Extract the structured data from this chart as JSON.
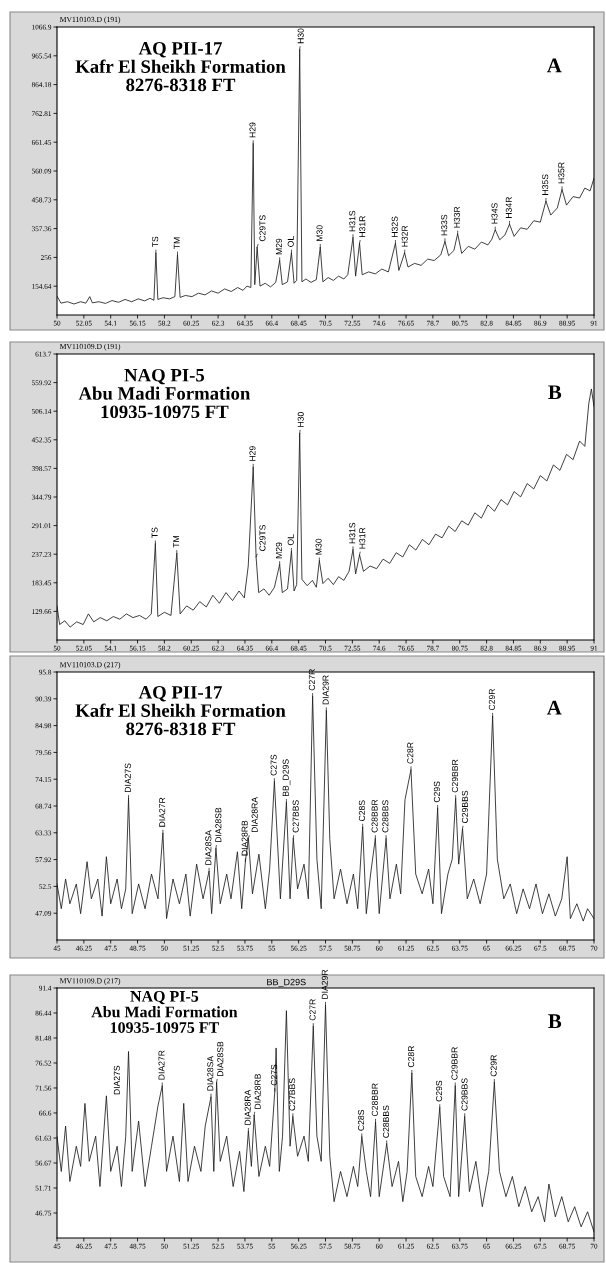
{
  "chart_data": [
    {
      "type": "line",
      "title": "AQ PII-17\nKafr El Sheikh Formation\n8276-8318 FT",
      "subtitle": "MV110103.D (191)",
      "annotations": [
        "A",
        {
          "text": "TS",
          "x": 57.55,
          "y": 272
        },
        {
          "text": "TM",
          "x": 59.2,
          "y": 265
        },
        {
          "text": "H29",
          "x": 64.98,
          "y": 657
        },
        {
          "text": "C29TS",
          "x": 65.28,
          "y": 292
        },
        {
          "text": "M29",
          "x": 67.0,
          "y": 245
        },
        {
          "text": "OL",
          "x": 67.9,
          "y": 272
        },
        {
          "text": "H30",
          "x": 68.53,
          "y": 988
        },
        {
          "text": "M30",
          "x": 70.1,
          "y": 292
        },
        {
          "text": "H31S",
          "x": 72.6,
          "y": 326
        },
        {
          "text": "H31R",
          "x": 73.1,
          "y": 306
        },
        {
          "text": "H32S",
          "x": 75.84,
          "y": 306
        },
        {
          "text": "H32R",
          "x": 76.54,
          "y": 272
        },
        {
          "text": "H33S",
          "x": 79.62,
          "y": 312
        },
        {
          "text": "H33R",
          "x": 80.59,
          "y": 339
        },
        {
          "text": "H34S",
          "x": 83.46,
          "y": 353
        },
        {
          "text": "H34R",
          "x": 84.55,
          "y": 373
        },
        {
          "text": "H35S",
          "x": 87.33,
          "y": 454
        },
        {
          "text": "H35R",
          "x": 88.56,
          "y": 495
        }
      ],
      "x": [
        50,
        50.3,
        50.8,
        51.3,
        51.8,
        52.2,
        52.5,
        52.7,
        53.2,
        53.7,
        54.2,
        54.7,
        55.2,
        55.7,
        56.2,
        56.7,
        57.1,
        57.4,
        57.55,
        57.7,
        58.1,
        58.6,
        59.0,
        59.2,
        59.4,
        59.8,
        60.3,
        60.8,
        61.3,
        61.8,
        62.3,
        62.8,
        63.3,
        63.8,
        64.2,
        64.5,
        64.8,
        64.98,
        65.1,
        65.28,
        65.5,
        65.9,
        66.3,
        66.7,
        67.0,
        67.2,
        67.6,
        67.9,
        68.1,
        68.3,
        68.53,
        68.7,
        69.0,
        69.4,
        69.8,
        70.1,
        70.3,
        70.7,
        71.1,
        71.5,
        71.9,
        72.2,
        72.6,
        72.8,
        73.1,
        73.3,
        73.8,
        74.3,
        74.8,
        75.3,
        75.84,
        76.1,
        76.54,
        76.8,
        77.3,
        77.8,
        78.3,
        78.8,
        79.3,
        79.62,
        79.9,
        80.3,
        80.59,
        80.9,
        81.4,
        81.9,
        82.4,
        82.9,
        83.2,
        83.46,
        83.8,
        84.2,
        84.55,
        84.9,
        85.4,
        85.9,
        86.4,
        86.9,
        87.33,
        87.7,
        88.2,
        88.56,
        88.9,
        89.4,
        89.9,
        90.3,
        90.7,
        91.0
      ],
      "series": [
        {
          "color": "#1a1a1a",
          "values": [
            120,
            95,
            100,
            92,
            100,
            95,
            118,
            96,
            100,
            94,
            104,
            98,
            108,
            100,
            110,
            103,
            112,
            105,
            272,
            108,
            114,
            110,
            118,
            265,
            115,
            122,
            118,
            130,
            124,
            138,
            130,
            145,
            136,
            150,
            140,
            155,
            150,
            657,
            160,
            292,
            155,
            165,
            152,
            168,
            245,
            160,
            170,
            272,
            165,
            175,
            988,
            170,
            180,
            168,
            178,
            292,
            170,
            185,
            175,
            190,
            180,
            195,
            326,
            190,
            306,
            195,
            205,
            198,
            215,
            205,
            306,
            210,
            272,
            222,
            235,
            228,
            250,
            245,
            265,
            312,
            262,
            280,
            339,
            270,
            295,
            285,
            310,
            300,
            320,
            353,
            318,
            335,
            373,
            330,
            360,
            355,
            385,
            380,
            454,
            405,
            430,
            495,
            440,
            470,
            465,
            500,
            490,
            535
          ]
        }
      ],
      "xlim": [
        50,
        91
      ],
      "ylim": [
        53.28,
        1066.9
      ],
      "xticks": [
        50,
        52.05,
        54.1,
        56.15,
        58.2,
        60.25,
        62.3,
        64.35,
        66.4,
        68.45,
        70.5,
        72.55,
        74.6,
        76.65,
        78.7,
        80.75,
        82.8,
        84.85,
        86.9,
        88.95,
        91
      ],
      "yticks": [
        154.64,
        256,
        357.36,
        458.73,
        560.09,
        661.45,
        762.81,
        864.18,
        965.54,
        1066.9
      ]
    },
    {
      "type": "line",
      "title": "NAQ PI-5\nAbu Madi Formation\n10935-10975 FT",
      "subtitle": "MV110109.D (191)",
      "annotations": [
        "B",
        {
          "text": "TS",
          "x": 57.51,
          "y": 257
        },
        {
          "text": "TM",
          "x": 59.15,
          "y": 239
        },
        {
          "text": "H29",
          "x": 64.98,
          "y": 401
        },
        {
          "text": "C29TS",
          "x": 65.2,
          "y": 232
        },
        {
          "text": "M29",
          "x": 67.0,
          "y": 218
        },
        {
          "text": "OL",
          "x": 67.9,
          "y": 243
        },
        {
          "text": "H30",
          "x": 68.53,
          "y": 465
        },
        {
          "text": "M30",
          "x": 70.03,
          "y": 225
        },
        {
          "text": "H31S",
          "x": 72.6,
          "y": 246
        },
        {
          "text": "H31R",
          "x": 73.1,
          "y": 236
        }
      ],
      "x": [
        50,
        50.2,
        50.6,
        51.0,
        51.5,
        52.0,
        52.4,
        52.8,
        53.3,
        53.8,
        54.3,
        54.8,
        55.3,
        55.8,
        56.3,
        56.8,
        57.2,
        57.51,
        57.7,
        58.2,
        58.7,
        59.15,
        59.4,
        59.9,
        60.4,
        60.9,
        61.4,
        61.9,
        62.4,
        62.9,
        63.4,
        63.9,
        64.3,
        64.6,
        64.98,
        65.2,
        65.4,
        65.8,
        66.2,
        66.6,
        67.0,
        67.2,
        67.6,
        67.9,
        68.1,
        68.3,
        68.53,
        68.7,
        69.1,
        69.5,
        69.8,
        70.03,
        70.3,
        70.7,
        71.1,
        71.5,
        71.9,
        72.3,
        72.6,
        72.8,
        73.1,
        73.4,
        73.9,
        74.4,
        74.9,
        75.4,
        75.9,
        76.4,
        76.9,
        77.4,
        77.9,
        78.4,
        78.9,
        79.4,
        79.9,
        80.4,
        80.9,
        81.4,
        81.9,
        82.4,
        82.9,
        83.4,
        83.9,
        84.4,
        84.9,
        85.4,
        85.9,
        86.4,
        86.9,
        87.4,
        87.9,
        88.4,
        88.9,
        89.4,
        89.9,
        90.3,
        90.6,
        90.8,
        91.0
      ],
      "series": [
        {
          "color": "#1a1a1a",
          "values": [
            140,
            105,
            112,
            100,
            110,
            105,
            125,
            110,
            118,
            112,
            120,
            115,
            125,
            118,
            122,
            115,
            125,
            257,
            120,
            128,
            122,
            239,
            125,
            140,
            132,
            148,
            138,
            160,
            145,
            165,
            150,
            168,
            155,
            215,
            401,
            232,
            165,
            172,
            160,
            175,
            218,
            165,
            172,
            243,
            168,
            180,
            465,
            190,
            178,
            188,
            175,
            225,
            182,
            192,
            180,
            195,
            188,
            205,
            246,
            200,
            236,
            205,
            215,
            210,
            228,
            220,
            240,
            232,
            255,
            245,
            265,
            255,
            275,
            268,
            290,
            280,
            300,
            292,
            315,
            305,
            330,
            318,
            340,
            330,
            355,
            345,
            370,
            360,
            385,
            375,
            405,
            395,
            425,
            415,
            450,
            440,
            520,
            548,
            515
          ]
        }
      ],
      "xlim": [
        50,
        91
      ],
      "ylim": [
        75.88,
        613.7
      ],
      "xticks": [
        50,
        52.05,
        54.1,
        56.15,
        58.2,
        60.25,
        62.3,
        64.35,
        66.4,
        68.45,
        70.5,
        72.55,
        74.6,
        76.65,
        78.7,
        80.75,
        82.8,
        84.85,
        86.9,
        88.95,
        91
      ],
      "yticks": [
        129.66,
        183.45,
        237.23,
        291.01,
        344.79,
        398.57,
        452.35,
        506.14,
        559.92,
        613.7
      ]
    },
    {
      "type": "line",
      "title": "AQ PII-17\nKafr El Sheikh Formation\n8276-8318 FT",
      "subtitle": "MV110103.D (217)",
      "annotations": [
        "A",
        {
          "text": "DIA27S",
          "x": 48.33,
          "y": 70.3
        },
        {
          "text": "DIA27R",
          "x": 49.93,
          "y": 63.3
        },
        {
          "text": "DIA28SA",
          "x": 52.08,
          "y": 55.6
        },
        {
          "text": "DIA28SB",
          "x": 52.4,
          "y": 60.2
        },
        {
          "text": "DIA28RB",
          "x": 53.77,
          "y": 57.5
        },
        {
          "text": "DIA28RA",
          "x": 53.91,
          "y": 62.2
        },
        {
          "text": "C27S",
          "x": 55.12,
          "y": 73.7
        },
        {
          "text": "BB_D29S",
          "x": 55.68,
          "y": 69.5
        },
        {
          "text": "C27BBS",
          "x": 56.0,
          "y": 62.2
        },
        {
          "text": "C27R",
          "x": 56.9,
          "y": 90.9
        },
        {
          "text": "DIA29R",
          "x": 57.54,
          "y": 88.0
        },
        {
          "text": "C28S",
          "x": 59.23,
          "y": 64.5
        },
        {
          "text": "C28BBR",
          "x": 59.82,
          "y": 62.2
        },
        {
          "text": "C28BBS",
          "x": 60.32,
          "y": 62.2
        },
        {
          "text": "C28R",
          "x": 61.48,
          "y": 76.1
        },
        {
          "text": "C29S",
          "x": 62.72,
          "y": 68.3
        },
        {
          "text": "C29BBR",
          "x": 63.56,
          "y": 70.3
        },
        {
          "text": "C29BBS",
          "x": 63.88,
          "y": 64.1
        },
        {
          "text": "C29R",
          "x": 65.28,
          "y": 86.9
        }
      ],
      "x": [
        45,
        45.2,
        45.4,
        45.6,
        45.9,
        46.1,
        46.4,
        46.6,
        46.9,
        47.1,
        47.3,
        47.5,
        47.8,
        48.0,
        48.2,
        48.33,
        48.5,
        48.8,
        49.1,
        49.4,
        49.7,
        49.93,
        50.1,
        50.4,
        50.7,
        51.0,
        51.2,
        51.5,
        51.8,
        52.08,
        52.2,
        52.4,
        52.6,
        52.9,
        53.1,
        53.4,
        53.6,
        53.77,
        53.91,
        54.1,
        54.4,
        54.7,
        54.9,
        55.12,
        55.4,
        55.68,
        55.85,
        56.0,
        56.2,
        56.5,
        56.7,
        56.9,
        57.1,
        57.3,
        57.54,
        57.7,
        57.9,
        58.2,
        58.5,
        58.8,
        59.0,
        59.23,
        59.4,
        59.6,
        59.82,
        60.0,
        60.32,
        60.5,
        60.8,
        61.0,
        61.2,
        61.48,
        61.7,
        62.0,
        62.3,
        62.5,
        62.72,
        62.9,
        63.2,
        63.4,
        63.56,
        63.7,
        63.88,
        64.1,
        64.4,
        64.7,
        65.0,
        65.28,
        65.5,
        65.8,
        66.1,
        66.4,
        66.7,
        67.0,
        67.3,
        67.6,
        67.9,
        68.2,
        68.5,
        68.75,
        68.9,
        69.2,
        69.5,
        69.7,
        70.0
      ],
      "series": [
        {
          "color": "#1a1a1a",
          "values": [
            53,
            48,
            54,
            49,
            53,
            47,
            57.5,
            50,
            54,
            46.5,
            58.5,
            49,
            54,
            48,
            52,
            70.3,
            47,
            53,
            48,
            55,
            50,
            63.3,
            46,
            54,
            49,
            55,
            46.5,
            57,
            50,
            55.6,
            47,
            60.2,
            49,
            55,
            50,
            59.5,
            48,
            57.5,
            62.2,
            51,
            59,
            48,
            56,
            73.7,
            50,
            69.5,
            50,
            62.2,
            52,
            57,
            50,
            90.9,
            58,
            48,
            88.0,
            62,
            50,
            56,
            49,
            55,
            48,
            64.5,
            47,
            55,
            62.2,
            47,
            62.2,
            50,
            57,
            51,
            70,
            76.1,
            55,
            51,
            56,
            49,
            68.3,
            47,
            55,
            58,
            70.3,
            57,
            64.1,
            50,
            54,
            49,
            55,
            86.9,
            58,
            50,
            53,
            47,
            52,
            48,
            53,
            47,
            51,
            46.5,
            50,
            58.5,
            46,
            49,
            45.5,
            48,
            46
          ]
        }
      ],
      "xlim": [
        45,
        70
      ],
      "ylim": [
        41.68,
        95.8
      ],
      "xticks": [
        45,
        46.25,
        47.5,
        48.75,
        50,
        51.25,
        52.5,
        53.75,
        55,
        56.25,
        57.5,
        58.75,
        60,
        61.25,
        62.5,
        63.75,
        65,
        66.25,
        67.5,
        68.75,
        70
      ],
      "yticks": [
        47.09,
        52.5,
        57.92,
        63.33,
        68.74,
        74.15,
        79.56,
        84.98,
        90.39,
        95.8
      ]
    },
    {
      "type": "line",
      "title": "NAQ PI-5\nAbu Madi Formation\n10935-10975 FT",
      "subtitle": "MV110109.D (217)",
      "annotations": [
        "B",
        {
          "text": "DIA27S",
          "x": 48.33,
          "y": 78.8
        },
        {
          "text": "DIA27R",
          "x": 49.9,
          "y": 72.0
        },
        {
          "text": "DIA28SA",
          "x": 52.17,
          "y": 69.8
        },
        {
          "text": "DIA28SB",
          "x": 52.43,
          "y": 72.7
        },
        {
          "text": "DIA28RA",
          "x": 53.91,
          "y": 63.0
        },
        {
          "text": "DIA28RB",
          "x": 54.18,
          "y": 66.2
        },
        {
          "text": "C27S",
          "x": 55.14,
          "y": 70.9
        },
        "BB_D29S",
        {
          "text": "C27BBS",
          "x": 55.98,
          "y": 65.9
        },
        {
          "text": "C27R",
          "x": 56.93,
          "y": 83.8
        },
        {
          "text": "DIA29R",
          "x": 57.5,
          "y": 88.0
        },
        {
          "text": "C28S",
          "x": 59.19,
          "y": 61.9
        },
        {
          "text": "C28BBR",
          "x": 59.83,
          "y": 64.8
        },
        {
          "text": "C28BBS",
          "x": 60.35,
          "y": 60.5
        },
        {
          "text": "C28R",
          "x": 61.52,
          "y": 74.5
        },
        {
          "text": "C29S",
          "x": 62.82,
          "y": 67.7
        },
        {
          "text": "C29BBR",
          "x": 63.54,
          "y": 72.0
        },
        {
          "text": "C29BBS",
          "x": 63.98,
          "y": 65.9
        },
        {
          "text": "C29R",
          "x": 65.36,
          "y": 72.7
        }
      ],
      "x": [
        45,
        45.2,
        45.4,
        45.6,
        45.9,
        46.1,
        46.3,
        46.5,
        46.8,
        47.0,
        47.3,
        47.5,
        47.8,
        48.0,
        48.2,
        48.33,
        48.5,
        48.8,
        49.1,
        49.4,
        49.7,
        49.9,
        50.1,
        50.4,
        50.7,
        50.9,
        51.1,
        51.4,
        51.7,
        51.9,
        52.17,
        52.3,
        52.43,
        52.6,
        52.9,
        53.2,
        53.5,
        53.7,
        53.91,
        54.05,
        54.18,
        54.4,
        54.7,
        54.9,
        55.14,
        55.2,
        55.35,
        55.5,
        55.68,
        55.85,
        55.98,
        56.2,
        56.5,
        56.7,
        56.93,
        57.1,
        57.3,
        57.5,
        57.7,
        57.9,
        58.2,
        58.5,
        58.8,
        59.0,
        59.19,
        59.4,
        59.6,
        59.83,
        60.0,
        60.35,
        60.6,
        60.9,
        61.1,
        61.3,
        61.52,
        61.7,
        62.0,
        62.3,
        62.5,
        62.82,
        63.0,
        63.3,
        63.54,
        63.7,
        63.98,
        64.2,
        64.5,
        64.8,
        65.1,
        65.36,
        65.6,
        65.9,
        66.2,
        66.5,
        66.8,
        67.1,
        67.4,
        67.7,
        67.9,
        68.2,
        68.5,
        68.8,
        69.1,
        69.4,
        69.7,
        70.0
      ],
      "series": [
        {
          "color": "#1a1a1a",
          "values": [
            62,
            55,
            64,
            53,
            60,
            56,
            68.5,
            57,
            62,
            52,
            70,
            55,
            60,
            52,
            62,
            78.8,
            55,
            65,
            52,
            60,
            68,
            72.0,
            55,
            62,
            53,
            68.5,
            53,
            60,
            55,
            64,
            69.8,
            55,
            72.7,
            57,
            62,
            52,
            59,
            51,
            63.0,
            56,
            66.2,
            54,
            60,
            56,
            70.9,
            79.5,
            55,
            62,
            86.9,
            60,
            65.9,
            58,
            62,
            57,
            83.8,
            62,
            57,
            88.0,
            58,
            49,
            55,
            50,
            56,
            52,
            61.9,
            55,
            50,
            64.8,
            50,
            60.5,
            52,
            57,
            49,
            55,
            74.5,
            54,
            50,
            56,
            52,
            67.7,
            54,
            50,
            72.0,
            50,
            65.9,
            51,
            57,
            48,
            55,
            72.7,
            55,
            50,
            54,
            48,
            52,
            47,
            50,
            45,
            52.5,
            46,
            50,
            45,
            48,
            44,
            47,
            43
          ]
        }
      ],
      "xlim": [
        45,
        70
      ],
      "ylim": [
        41.79,
        91.4
      ],
      "xticks": [
        45,
        46.25,
        47.5,
        48.75,
        50,
        51.25,
        52.5,
        53.75,
        55,
        56.25,
        57.5,
        58.75,
        60,
        61.25,
        62.5,
        63.75,
        65,
        66.25,
        67.5,
        68.75,
        70
      ],
      "yticks": [
        46.75,
        51.71,
        56.67,
        61.63,
        66.6,
        71.56,
        76.52,
        81.48,
        86.44,
        91.4
      ]
    }
  ]
}
